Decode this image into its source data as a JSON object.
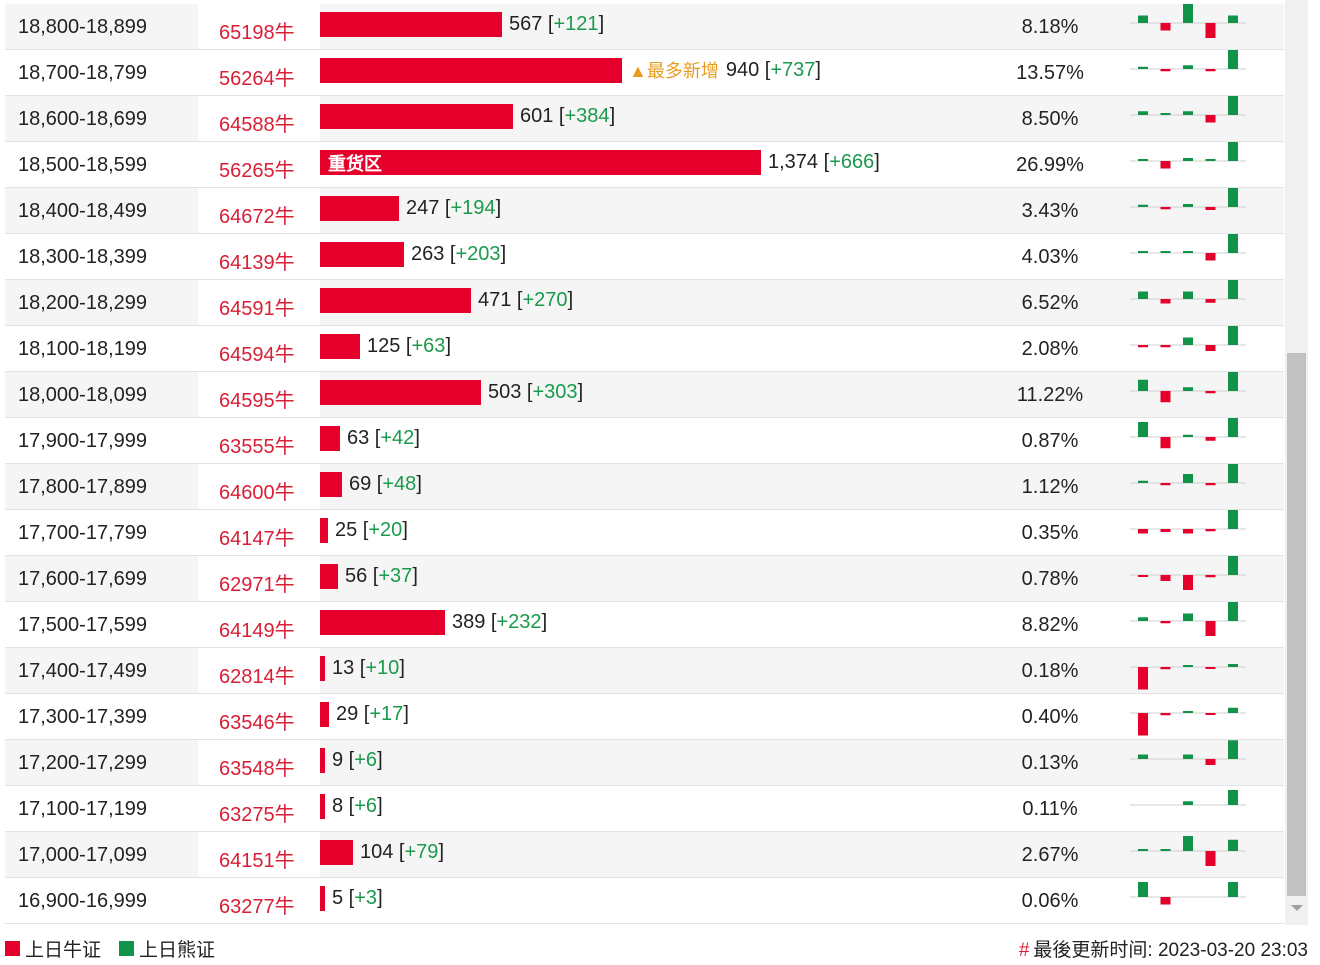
{
  "rows": [
    {
      "range": "18,800-18,899",
      "code": "65198牛",
      "value": "567",
      "delta": "+121",
      "pct": "8.18%",
      "bar": 567,
      "spark": [
        1,
        -1,
        3,
        -2,
        1
      ]
    },
    {
      "range": "18,700-18,799",
      "code": "56264牛",
      "value": "940",
      "delta": "+737",
      "pct": "13.57%",
      "bar": 940,
      "note": "▲最多新增",
      "spark": [
        0.3,
        -0.3,
        0.5,
        -0.3,
        3
      ]
    },
    {
      "range": "18,600-18,699",
      "code": "64588牛",
      "value": "601",
      "delta": "+384",
      "pct": "8.50%",
      "bar": 601,
      "spark": [
        0.5,
        0.2,
        0.5,
        -1,
        3
      ]
    },
    {
      "range": "18,500-18,599",
      "code": "56265牛",
      "value": "1,374",
      "delta": "+666",
      "pct": "26.99%",
      "bar": 1374,
      "label": "重货区",
      "spark": [
        0.2,
        -1,
        0.4,
        0.2,
        3
      ]
    },
    {
      "range": "18,400-18,499",
      "code": "64672牛",
      "value": "247",
      "delta": "+194",
      "pct": "3.43%",
      "bar": 247,
      "spark": [
        0.3,
        -0.3,
        0.4,
        -0.4,
        3
      ]
    },
    {
      "range": "18,300-18,399",
      "code": "64139牛",
      "value": "263",
      "delta": "+203",
      "pct": "4.03%",
      "bar": 263,
      "spark": [
        0.2,
        0.2,
        0.2,
        -1,
        3
      ]
    },
    {
      "range": "18,200-18,299",
      "code": "64591牛",
      "value": "471",
      "delta": "+270",
      "pct": "6.52%",
      "bar": 471,
      "spark": [
        1,
        -0.6,
        1,
        -0.5,
        3
      ]
    },
    {
      "range": "18,100-18,199",
      "code": "64594牛",
      "value": "125",
      "delta": "+63",
      "pct": "2.08%",
      "bar": 125,
      "spark": [
        -0.3,
        -0.3,
        1,
        -0.8,
        3
      ]
    },
    {
      "range": "18,000-18,099",
      "code": "64595牛",
      "value": "503",
      "delta": "+303",
      "pct": "11.22%",
      "bar": 503,
      "spark": [
        1.5,
        -1.5,
        0.5,
        -0.3,
        3
      ]
    },
    {
      "range": "17,900-17,999",
      "code": "63555牛",
      "value": "63",
      "delta": "+42",
      "pct": "0.87%",
      "bar": 63,
      "spark": [
        2,
        -1.5,
        0.3,
        -0.5,
        3
      ]
    },
    {
      "range": "17,800-17,899",
      "code": "64600牛",
      "value": "69",
      "delta": "+48",
      "pct": "1.12%",
      "bar": 69,
      "spark": [
        0.3,
        -0.3,
        1.2,
        -0.3,
        3
      ]
    },
    {
      "range": "17,700-17,799",
      "code": "64147牛",
      "value": "25",
      "delta": "+20",
      "pct": "0.35%",
      "bar": 25,
      "spark": [
        -0.6,
        -0.4,
        -0.6,
        -0.3,
        3
      ]
    },
    {
      "range": "17,600-17,699",
      "code": "62971牛",
      "value": "56",
      "delta": "+37",
      "pct": "0.78%",
      "bar": 56,
      "spark": [
        -0.2,
        -0.8,
        -2,
        -0.3,
        3
      ]
    },
    {
      "range": "17,500-17,599",
      "code": "64149牛",
      "value": "389",
      "delta": "+232",
      "pct": "8.82%",
      "bar": 389,
      "spark": [
        0.5,
        -0.3,
        1,
        -2,
        3
      ]
    },
    {
      "range": "17,400-17,499",
      "code": "62814牛",
      "value": "13",
      "delta": "+10",
      "pct": "0.18%",
      "bar": 13,
      "spark": [
        -3,
        -0.3,
        0.2,
        -0.2,
        0.4
      ]
    },
    {
      "range": "17,300-17,399",
      "code": "63546牛",
      "value": "29",
      "delta": "+17",
      "pct": "0.40%",
      "bar": 29,
      "spark": [
        -3,
        -0.3,
        0.2,
        -0.2,
        0.7
      ]
    },
    {
      "range": "17,200-17,299",
      "code": "63548牛",
      "value": "9",
      "delta": "+6",
      "pct": "0.13%",
      "bar": 9,
      "spark": [
        0.6,
        0,
        0.6,
        -0.8,
        2.5
      ]
    },
    {
      "range": "17,100-17,199",
      "code": "63275牛",
      "value": "8",
      "delta": "+6",
      "pct": "0.11%",
      "bar": 8,
      "spark": [
        0,
        0,
        0.5,
        0,
        2
      ]
    },
    {
      "range": "17,000-17,099",
      "code": "64151牛",
      "value": "104",
      "delta": "+79",
      "pct": "2.67%",
      "bar": 104,
      "spark": [
        0.1,
        0.1,
        2,
        -2,
        1.5
      ]
    },
    {
      "range": "16,900-16,999",
      "code": "63277牛",
      "value": "5",
      "delta": "+3",
      "pct": "0.06%",
      "bar": 5,
      "spark": [
        2,
        -1,
        0,
        0,
        2
      ]
    }
  ],
  "legend": {
    "bull": "上日牛证",
    "bear": "上日熊证"
  },
  "update": {
    "hash": "#",
    "text": "最後更新时间: 2023-03-20 23:03"
  },
  "colors": {
    "bull": "#e5002b",
    "bear": "#12934a",
    "code": "#d81f36",
    "delta": "#1a9a4c",
    "note": "#e89c1c"
  }
}
